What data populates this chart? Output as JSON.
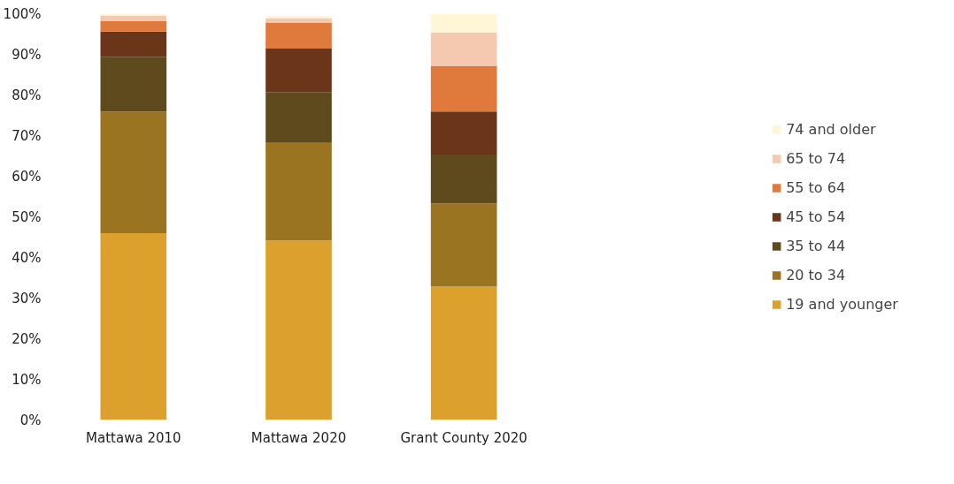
{
  "chart_data": {
    "type": "bar",
    "stacked": true,
    "categories": [
      "Mattawa 2010",
      "Mattawa 2020",
      "Grant County 2020"
    ],
    "series": [
      {
        "name": "19 and younger",
        "color": "#dca12d",
        "values": [
          46.0,
          44.2,
          32.8
        ]
      },
      {
        "name": "20 to 34",
        "color": "#9a7420",
        "values": [
          29.9,
          24.0,
          20.5
        ]
      },
      {
        "name": "35 to 44",
        "color": "#5e4a1c",
        "values": [
          13.5,
          12.5,
          12.0
        ]
      },
      {
        "name": "45 to 54",
        "color": "#6b351a",
        "values": [
          6.2,
          10.7,
          10.6
        ]
      },
      {
        "name": "55 to 64",
        "color": "#e07a3c",
        "values": [
          2.6,
          6.4,
          11.3
        ]
      },
      {
        "name": "65 to 74",
        "color": "#f5c9b0",
        "values": [
          1.3,
          1.1,
          8.1
        ]
      },
      {
        "name": "74 and older",
        "color": "#fff6d8",
        "values": [
          0.5,
          0.5,
          4.7
        ]
      }
    ],
    "ylim": [
      0,
      100
    ],
    "yticks": [
      {
        "value": 0,
        "label": "0%"
      },
      {
        "value": 10,
        "label": "10%"
      },
      {
        "value": 20,
        "label": "20%"
      },
      {
        "value": 30,
        "label": "30%"
      },
      {
        "value": 40,
        "label": "40%"
      },
      {
        "value": 50,
        "label": "50%"
      },
      {
        "value": 60,
        "label": "60%"
      },
      {
        "value": 70,
        "label": "70%"
      },
      {
        "value": 80,
        "label": "80%"
      },
      {
        "value": 90,
        "label": "90%"
      },
      {
        "value": 100,
        "label": "100%"
      }
    ],
    "grid": false,
    "legend": "right"
  }
}
